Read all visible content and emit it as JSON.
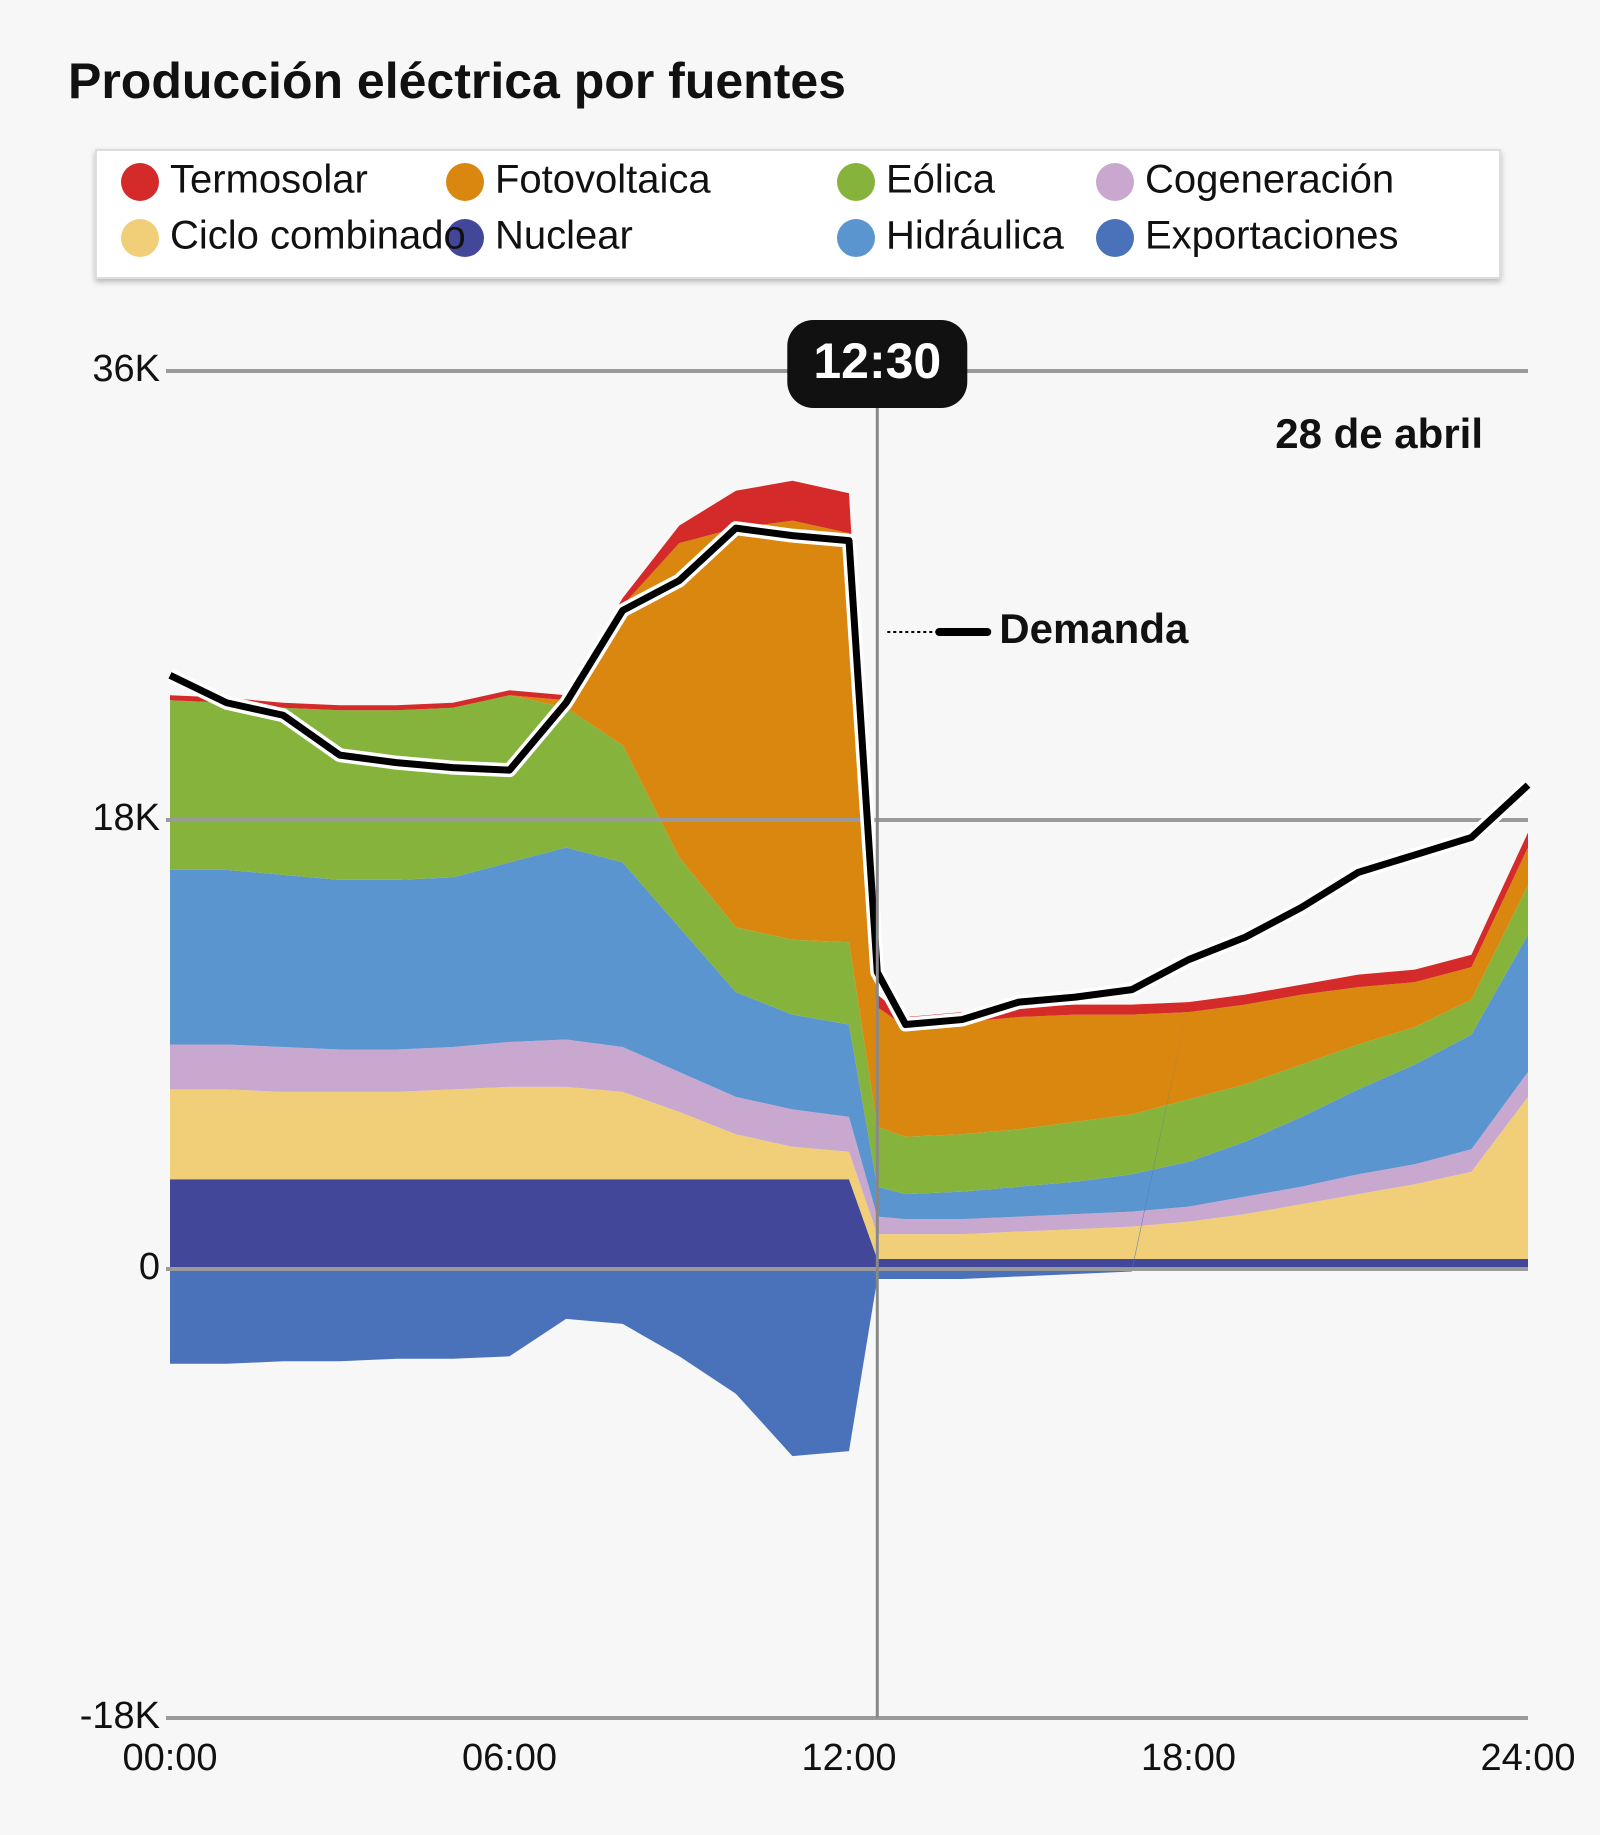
{
  "chart_data": {
    "type": "area",
    "stacked": true,
    "title": "Producción eléctrica por fuentes",
    "date_label": "28 de abril",
    "marker": {
      "value": 12.5,
      "label": "12:30"
    },
    "x": [
      0,
      1,
      2,
      3,
      4,
      5,
      6,
      7,
      8,
      9,
      10,
      11,
      12,
      12.5,
      13,
      14,
      15,
      16,
      17,
      18,
      19,
      20,
      21,
      22,
      23,
      24
    ],
    "series": [
      {
        "name": "Nuclear",
        "color": "#43479a",
        "values": [
          3600,
          3600,
          3600,
          3600,
          3600,
          3600,
          3600,
          3600,
          3600,
          3600,
          3600,
          3600,
          3600,
          400,
          400,
          400,
          400,
          400,
          400,
          400,
          400,
          400,
          400,
          400,
          400,
          400
        ]
      },
      {
        "name": "Ciclo combinado",
        "color": "#f1cf79",
        "values": [
          3600,
          3600,
          3500,
          3500,
          3500,
          3600,
          3700,
          3700,
          3500,
          2700,
          1800,
          1300,
          1100,
          1000,
          1000,
          1000,
          1100,
          1200,
          1300,
          1500,
          1800,
          2200,
          2600,
          3000,
          3500,
          6500
        ]
      },
      {
        "name": "Cogeneración",
        "color": "#c9a8d0",
        "values": [
          1800,
          1800,
          1800,
          1700,
          1700,
          1700,
          1800,
          1900,
          1800,
          1600,
          1500,
          1500,
          1400,
          700,
          600,
          600,
          600,
          600,
          600,
          600,
          700,
          700,
          800,
          800,
          900,
          1000
        ]
      },
      {
        "name": "Hidráulica",
        "color": "#5b95d0",
        "values": [
          7000,
          7000,
          6900,
          6800,
          6800,
          6800,
          7200,
          7700,
          7400,
          5800,
          4200,
          3800,
          3700,
          1200,
          1000,
          1100,
          1200,
          1300,
          1500,
          1800,
          2200,
          2800,
          3400,
          4000,
          4600,
          5500
        ]
      },
      {
        "name": "Eólica",
        "color": "#86b33c",
        "values": [
          6800,
          6700,
          6700,
          6800,
          6800,
          6800,
          6700,
          5600,
          4700,
          2800,
          2600,
          3000,
          3300,
          2400,
          2300,
          2300,
          2300,
          2400,
          2400,
          2500,
          2300,
          2100,
          1800,
          1500,
          1400,
          2000
        ]
      },
      {
        "name": "Fotovoltaica",
        "color": "#d9870f",
        "values": [
          0,
          0,
          0,
          0,
          0,
          0,
          0,
          300,
          5600,
          12600,
          16000,
          16800,
          16400,
          4800,
          4400,
          4500,
          4500,
          4300,
          4000,
          3500,
          3200,
          2800,
          2300,
          1800,
          1300,
          1500
        ]
      },
      {
        "name": "Termosolar",
        "color": "#d42a2a",
        "values": [
          200,
          200,
          200,
          200,
          200,
          200,
          200,
          200,
          300,
          700,
          1500,
          1600,
          1600,
          500,
          400,
          400,
          400,
          400,
          400,
          400,
          400,
          400,
          500,
          500,
          500,
          600
        ]
      },
      {
        "name": "Exportaciones",
        "color": "#4a72bb",
        "values": [
          -3800,
          -3800,
          -3700,
          -3700,
          -3600,
          -3600,
          -3500,
          -2000,
          -2200,
          -3500,
          -5000,
          -7500,
          -7300,
          -400,
          -400,
          -400,
          -300,
          -200,
          -100,
          0,
          0,
          0,
          0,
          0,
          0,
          0
        ]
      }
    ],
    "line": {
      "name": "Demanda",
      "color": "#000000",
      "values": [
        23800,
        22700,
        22200,
        20600,
        20300,
        20100,
        20000,
        22700,
        26400,
        27600,
        29700,
        29400,
        29200,
        11900,
        9800,
        10000,
        10700,
        10900,
        11200,
        12400,
        13300,
        14500,
        15900,
        16600,
        17300,
        19400
      ]
    },
    "xlim": [
      0,
      24
    ],
    "xticks": [
      {
        "value": 0,
        "label": "00:00"
      },
      {
        "value": 6,
        "label": "06:00"
      },
      {
        "value": 12,
        "label": "12:00"
      },
      {
        "value": 18,
        "label": "18:00"
      },
      {
        "value": 24,
        "label": "24:00"
      }
    ],
    "ylim": [
      -18000,
      36000
    ],
    "yticks": [
      {
        "value": -18000,
        "label": "-18K"
      },
      {
        "value": 0,
        "label": "0"
      },
      {
        "value": 18000,
        "label": "18K"
      },
      {
        "value": 36000,
        "label": "36K"
      }
    ],
    "grid": true
  }
}
